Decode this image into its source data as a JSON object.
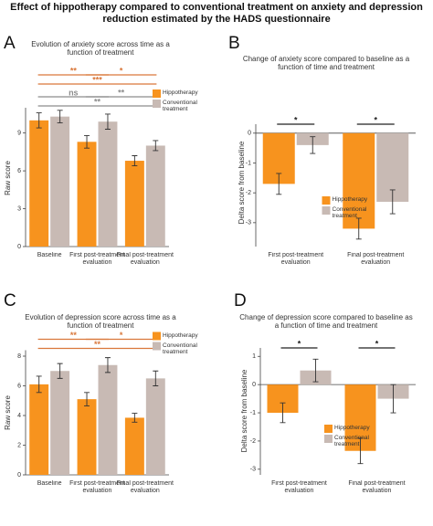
{
  "figure_title": "Effect of hippotherapy compared to conventional treatment on anxiety and depression reduction estimated by the HADS questionnaire",
  "chart_data": [
    {
      "type": "bar",
      "panel": "A",
      "title": "Evolution of anxiety score across time as a function of treatment",
      "y_label": "Raw score",
      "categories": [
        "Baseline",
        "First post-treatment evaluation",
        "Final post-treatment evaluation"
      ],
      "series": [
        {
          "name": "Hippotherapy",
          "color": "#f7931e",
          "values": [
            10.0,
            8.3,
            6.8
          ],
          "errors": [
            0.6,
            0.5,
            0.4
          ]
        },
        {
          "name": "Conventional treatment",
          "color": "#c8bab4",
          "values": [
            10.3,
            9.9,
            8.0
          ],
          "errors": [
            0.5,
            0.6,
            0.4
          ]
        }
      ],
      "ylim": [
        0,
        11
      ],
      "yticks": [
        0,
        3,
        6,
        9
      ],
      "legend": "upper right",
      "annotations": [
        {
          "label": "**",
          "color": "#d9773a"
        },
        {
          "label": "*",
          "color": "#d9773a"
        },
        {
          "label": "***",
          "color": "#d9773a"
        },
        {
          "label": "ns",
          "color": "#8c8c8c"
        },
        {
          "label": "**",
          "color": "#8c8c8c"
        },
        {
          "label": "**",
          "color": "#8c8c8c"
        }
      ]
    },
    {
      "type": "bar",
      "panel": "B",
      "title": "Change of anxiety score compared to baseline as a function of time and treatment",
      "y_label": "Delta score from baseline",
      "categories": [
        "First post-treatment evaluation",
        "Final post-treatment evaluation"
      ],
      "series": [
        {
          "name": "Hippotherapy",
          "color": "#f7931e",
          "values": [
            -1.7,
            -3.2
          ],
          "errors": [
            0.35,
            0.35
          ]
        },
        {
          "name": "Conventional treatment",
          "color": "#c8bab4",
          "values": [
            -0.4,
            -2.3
          ],
          "errors": [
            0.28,
            0.4
          ]
        }
      ],
      "ylim": [
        -3.8,
        0.3
      ],
      "yticks": [
        0,
        -1,
        -2,
        -3
      ],
      "legend": "lower center",
      "annotations": [
        {
          "label": "*",
          "color": "#222222"
        },
        {
          "label": "*",
          "color": "#222222"
        }
      ]
    },
    {
      "type": "bar",
      "panel": "C",
      "title": "Evolution of depression score across time as a function of treatment",
      "y_label": "Raw score",
      "categories": [
        "Baseline",
        "First post-treatment evaluation",
        "Final post-treatment evaluation"
      ],
      "series": [
        {
          "name": "Hippotherapy",
          "color": "#f7931e",
          "values": [
            6.1,
            5.1,
            3.85
          ],
          "errors": [
            0.55,
            0.45,
            0.3
          ]
        },
        {
          "name": "Conventional treatment",
          "color": "#c8bab4",
          "values": [
            7.0,
            7.4,
            6.5
          ],
          "errors": [
            0.5,
            0.5,
            0.5
          ]
        }
      ],
      "ylim": [
        0,
        8.4
      ],
      "yticks": [
        0,
        2,
        4,
        6,
        8
      ],
      "legend": "upper right",
      "annotations": [
        {
          "label": "**",
          "color": "#d9773a"
        },
        {
          "label": "*",
          "color": "#d9773a"
        },
        {
          "label": "**",
          "color": "#d9773a"
        }
      ]
    },
    {
      "type": "bar",
      "panel": "D",
      "title": "Change of depression score compared to baseline as a function of time and treatment",
      "y_label": "Delta score from baseline",
      "categories": [
        "First post-treatment evaluation",
        "Final post-treatment evaluation"
      ],
      "series": [
        {
          "name": "Hippotherapy",
          "color": "#f7931e",
          "values": [
            -1.0,
            -2.35
          ],
          "errors": [
            0.35,
            0.45
          ]
        },
        {
          "name": "Conventional treatment",
          "color": "#c8bab4",
          "values": [
            0.5,
            -0.5
          ],
          "errors": [
            0.4,
            0.5
          ]
        }
      ],
      "ylim": [
        -3.2,
        1.3
      ],
      "yticks": [
        1,
        0,
        -1,
        -2,
        -3
      ],
      "legend": "lower center",
      "annotations": [
        {
          "label": "*",
          "color": "#222222"
        },
        {
          "label": "*",
          "color": "#222222"
        }
      ]
    }
  ]
}
